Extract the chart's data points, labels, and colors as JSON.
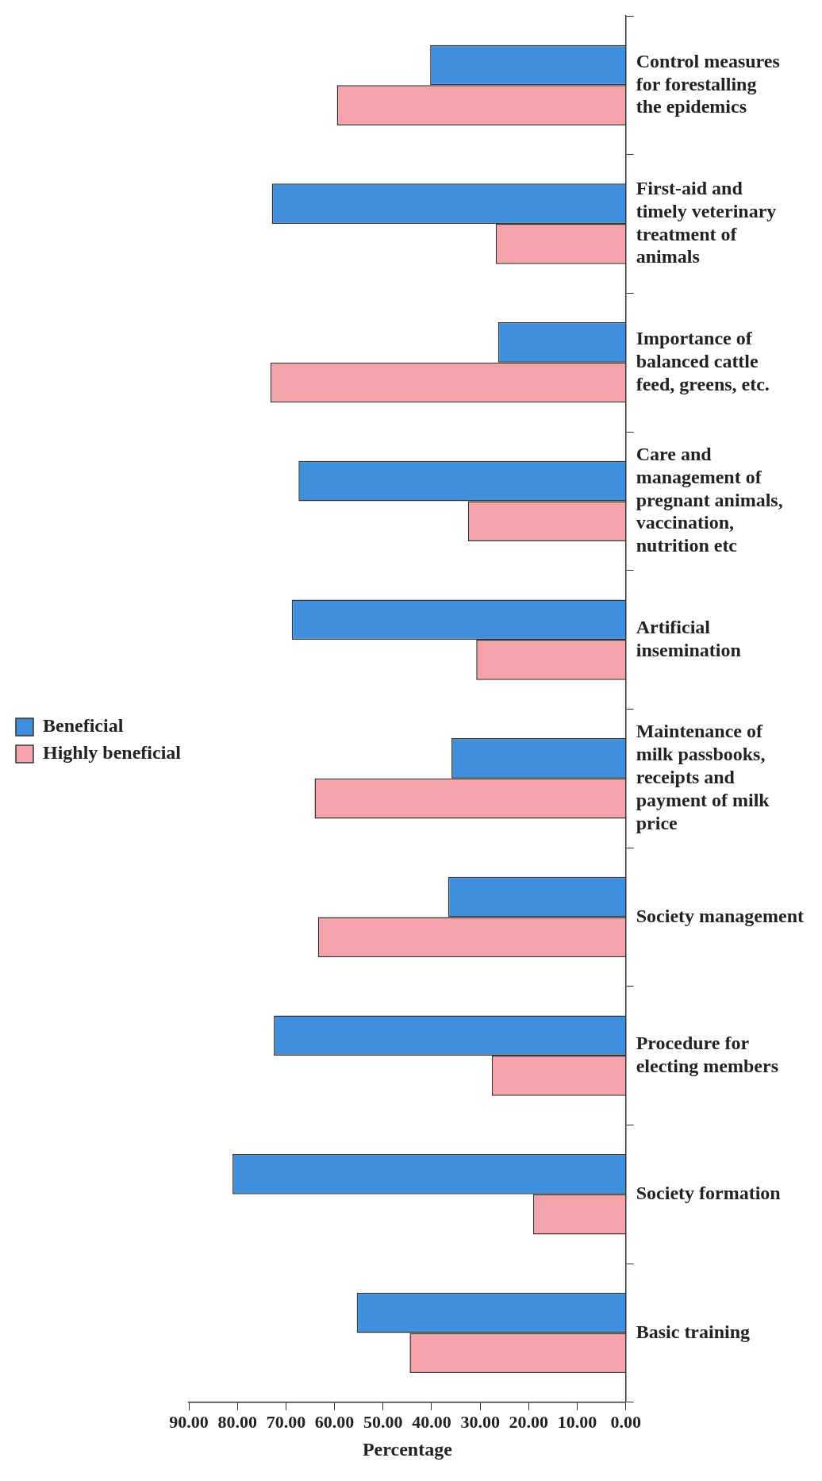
{
  "chart_data": {
    "type": "bar",
    "orientation": "horizontal",
    "xlabel": "Percentage",
    "categories": [
      "Control measures for forestalling the epidemics",
      "First-aid and timely veterinary treatment of animals",
      "Importance of balanced cattle feed, greens, etc.",
      "Care and management of pregnant animals, vaccination, nutrition etc",
      "Artificial insemination",
      "Maintenance of milk passbooks, receipts and payment of milk price",
      "Society management",
      "Procedure for electing members",
      "Society formation",
      "Basic training"
    ],
    "series": [
      {
        "name": "Beneficial",
        "color": "#3f8fdc",
        "values": [
          40.3,
          72.9,
          26.3,
          67.4,
          68.8,
          35.9,
          36.6,
          72.5,
          81.0,
          55.4
        ]
      },
      {
        "name": "Highly beneficial",
        "color": "#f4a3aa",
        "values": [
          59.5,
          26.8,
          73.2,
          32.5,
          30.8,
          64.1,
          63.4,
          27.6,
          19.1,
          44.5
        ]
      }
    ],
    "xlim": [
      90,
      0
    ],
    "xticks": [
      {
        "value": 90,
        "label": "90.00"
      },
      {
        "value": 80,
        "label": "80.00"
      },
      {
        "value": 70,
        "label": "70.00"
      },
      {
        "value": 60,
        "label": "60.00"
      },
      {
        "value": 50,
        "label": "50.00"
      },
      {
        "value": 40,
        "label": "40.00"
      },
      {
        "value": 30,
        "label": "30.00"
      },
      {
        "value": 20,
        "label": "20.00"
      },
      {
        "value": 10,
        "label": "10.00"
      },
      {
        "value": 0,
        "label": "0.00"
      }
    ],
    "grid": false,
    "legend": "left"
  }
}
